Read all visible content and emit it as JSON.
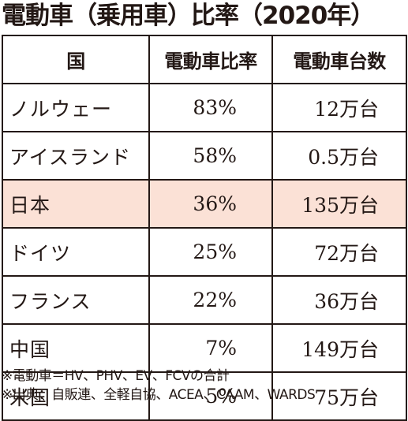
{
  "title": "電動車（乗用車）比率（2020年）",
  "table": {
    "headers": [
      "国",
      "電動車比率",
      "電動車台数"
    ],
    "rows": [
      {
        "country": "ノルウェー",
        "ratio": "83%",
        "count": "12万台"
      },
      {
        "country": "アイスランド",
        "ratio": "58%",
        "count": "0.5万台"
      },
      {
        "country": "日本",
        "ratio": "36%",
        "count": "135万台"
      },
      {
        "country": "ドイツ",
        "ratio": "25%",
        "count": "72万台"
      },
      {
        "country": "フランス",
        "ratio": "22%",
        "count": "36万台"
      },
      {
        "country": "中国",
        "ratio": "7%",
        "count": "149万台"
      },
      {
        "country": "米国",
        "ratio": "5%",
        "count": "75万台"
      }
    ],
    "highlight_color": "#fbe1d6"
  },
  "notes": [
    "※電動車＝HV、PHV、EV、FCVの合計",
    "※出典：自販連、全軽自協、ACEA、CAAM、WARDS"
  ]
}
